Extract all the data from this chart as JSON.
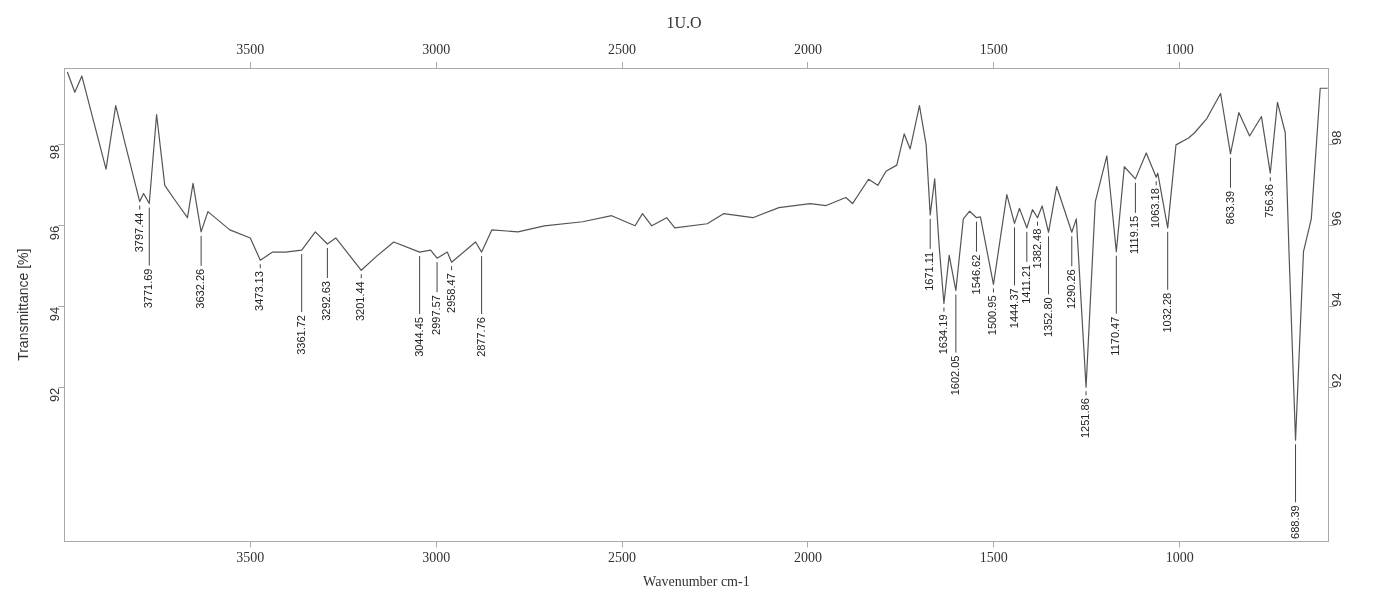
{
  "chart_data": {
    "type": "line",
    "title": "1U.O",
    "xlabel": "Wavenumber cm-1",
    "ylabel": "Transmittance [%]",
    "marker": "none",
    "xlim": [
      4000,
      600
    ],
    "xticks": [
      3500,
      3000,
      2500,
      2000,
      1500,
      1000
    ],
    "x2lim": [
      4000,
      600
    ],
    "x2ticks": [
      3500,
      3000,
      2500,
      2000,
      1500,
      1000
    ],
    "ylim": [
      88.2,
      99.9
    ],
    "yticks": [
      92,
      94,
      96,
      98
    ],
    "y2lim": [
      88.2,
      99.9
    ],
    "y2ticks": [
      92,
      94,
      96,
      98
    ],
    "series": [
      {
        "color": "#555555",
        "x": [
          3992,
          3972,
          3953,
          3888,
          3862,
          3835,
          3797.44,
          3787,
          3771.69,
          3752,
          3730,
          3700,
          3669,
          3654,
          3632.26,
          3614,
          3555,
          3500,
          3473.13,
          3440,
          3405,
          3361.72,
          3325,
          3292.63,
          3270,
          3201.44,
          3160,
          3114,
          3044.45,
          3015,
          2997.57,
          2970,
          2958.47,
          2894,
          2877.76,
          2850,
          2780,
          2709,
          2606,
          2528,
          2465,
          2445,
          2420,
          2380,
          2358,
          2271,
          2227,
          2148,
          2078,
          1994,
          1951,
          1898,
          1880,
          1837,
          1812,
          1790,
          1761,
          1741,
          1725,
          1700,
          1682,
          1671.11,
          1659,
          1647,
          1634.19,
          1620,
          1602.05,
          1582,
          1565,
          1546.62,
          1536,
          1500.95,
          1465,
          1444.37,
          1431,
          1411.21,
          1396,
          1382.48,
          1370,
          1352.8,
          1331,
          1290.26,
          1278,
          1251.86,
          1227,
          1196,
          1170.47,
          1149,
          1119.15,
          1090,
          1063.18,
          1059,
          1032.28,
          1010,
          976,
          960,
          927,
          890,
          863.39,
          841,
          812,
          780,
          756.36,
          737,
          716,
          706,
          688.39,
          667,
          646,
          622,
          602
        ],
        "values": [
          99.8,
          99.3,
          99.7,
          97.4,
          98.97,
          97.97,
          96.6,
          96.8,
          96.55,
          98.75,
          97.0,
          96.6,
          96.2,
          97.05,
          95.85,
          96.35,
          95.9,
          95.7,
          95.15,
          95.35,
          95.35,
          95.4,
          95.85,
          95.55,
          95.7,
          94.9,
          95.25,
          95.6,
          95.35,
          95.4,
          95.2,
          95.35,
          95.1,
          95.6,
          95.35,
          95.9,
          95.85,
          96.0,
          96.1,
          96.25,
          96.0,
          96.3,
          96.0,
          96.2,
          95.95,
          96.05,
          96.3,
          96.2,
          96.45,
          96.55,
          96.5,
          96.7,
          96.55,
          97.15,
          97.0,
          97.35,
          97.5,
          98.27,
          97.9,
          98.97,
          98.0,
          96.27,
          97.16,
          95.5,
          94.08,
          95.27,
          94.4,
          96.17,
          96.36,
          96.2,
          96.22,
          94.55,
          96.77,
          96.06,
          96.43,
          95.95,
          96.4,
          96.2,
          96.49,
          95.84,
          96.97,
          95.84,
          96.17,
          92.01,
          96.6,
          97.73,
          95.36,
          97.46,
          97.16,
          97.8,
          97.2,
          97.3,
          95.95,
          98.0,
          98.17,
          98.3,
          98.65,
          99.27,
          97.78,
          98.8,
          98.22,
          98.7,
          97.3,
          99.05,
          98.3,
          95.36,
          90.7,
          95.36,
          96.17,
          99.4,
          99.4
        ]
      }
    ],
    "annotations": [
      {
        "text": "3797.44",
        "x": 3797.44,
        "y": 96.6
      },
      {
        "text": "3771.69",
        "x": 3771.69,
        "y": 96.55
      },
      {
        "text": "3632.26",
        "x": 3632.26,
        "y": 95.85
      },
      {
        "text": "3473.13",
        "x": 3473.13,
        "y": 95.15
      },
      {
        "text": "3361.72",
        "x": 3361.72,
        "y": 95.4
      },
      {
        "text": "3292.63",
        "x": 3292.63,
        "y": 95.55
      },
      {
        "text": "3201.44",
        "x": 3201.44,
        "y": 94.9
      },
      {
        "text": "3044.45",
        "x": 3044.45,
        "y": 95.35
      },
      {
        "text": "2997.57",
        "x": 2997.57,
        "y": 95.2
      },
      {
        "text": "2958.47",
        "x": 2958.47,
        "y": 95.1
      },
      {
        "text": "2877.76",
        "x": 2877.76,
        "y": 95.35
      },
      {
        "text": "1671.11",
        "x": 1671.11,
        "y": 96.27
      },
      {
        "text": "1634.19",
        "x": 1634.19,
        "y": 94.08
      },
      {
        "text": "1602.05",
        "x": 1602.05,
        "y": 94.4
      },
      {
        "text": "1546.62",
        "x": 1546.62,
        "y": 96.2
      },
      {
        "text": "1500.95",
        "x": 1500.95,
        "y": 94.55
      },
      {
        "text": "1444.37",
        "x": 1444.37,
        "y": 96.06
      },
      {
        "text": "1411.21",
        "x": 1411.21,
        "y": 95.95
      },
      {
        "text": "1382.48",
        "x": 1382.48,
        "y": 96.2
      },
      {
        "text": "1352.80",
        "x": 1352.8,
        "y": 95.84
      },
      {
        "text": "1290.26",
        "x": 1290.26,
        "y": 95.84
      },
      {
        "text": "1251.86",
        "x": 1251.86,
        "y": 92.01
      },
      {
        "text": "1170.47",
        "x": 1170.47,
        "y": 95.36
      },
      {
        "text": "1119.15",
        "x": 1119.15,
        "y": 97.16
      },
      {
        "text": "1063.18",
        "x": 1063.18,
        "y": 97.2
      },
      {
        "text": "1032.28",
        "x": 1032.28,
        "y": 95.95
      },
      {
        "text": "863.39",
        "x": 863.39,
        "y": 97.78
      },
      {
        "text": "756.36",
        "x": 756.36,
        "y": 97.3
      },
      {
        "text": "688.39",
        "x": 688.39,
        "y": 90.7
      }
    ]
  }
}
